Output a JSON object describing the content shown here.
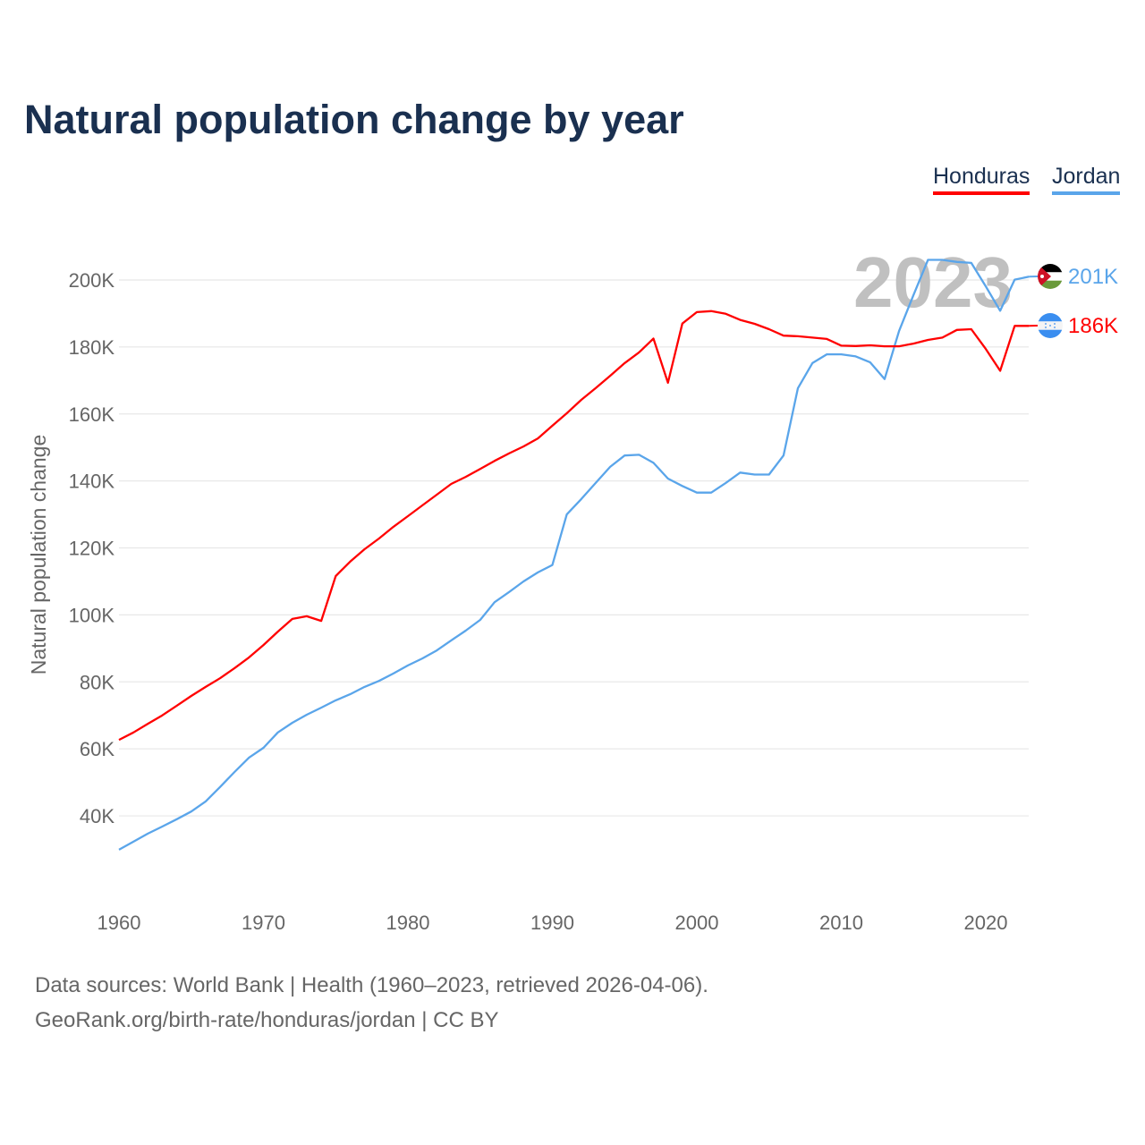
{
  "title": "Natural population change by year",
  "legend": [
    {
      "label": "Honduras",
      "color": "#ff0000"
    },
    {
      "label": "Jordan",
      "color": "#5aa5ea"
    }
  ],
  "year_watermark": "2023",
  "footer": {
    "line1": "Data sources: World Bank | Health (1960–2023, retrieved 2026-04-06).",
    "line2": "GeoRank.org/birth-rate/honduras/jordan | CC BY"
  },
  "chart_data": {
    "type": "line",
    "title": "Natural population change by year",
    "xlabel": "",
    "ylabel": "Natural population change",
    "xlim": [
      1960,
      2023
    ],
    "ylim": [
      20000,
      210000
    ],
    "grid": true,
    "legend_position": "top-right",
    "x_ticks": [
      1960,
      1970,
      1980,
      1990,
      2000,
      2010,
      2020
    ],
    "x_tick_labels": [
      "1960",
      "1970",
      "1980",
      "1990",
      "2000",
      "2010",
      "2020"
    ],
    "y_ticks": [
      40000,
      60000,
      80000,
      100000,
      120000,
      140000,
      160000,
      180000,
      200000
    ],
    "y_tick_labels": [
      "40K",
      "60K",
      "80K",
      "100K",
      "120K",
      "140K",
      "160K",
      "180K",
      "200K"
    ],
    "x_start": 1960,
    "series": [
      {
        "name": "Honduras",
        "color": "#ff0000",
        "flag": "honduras-flag",
        "end_label": "186K",
        "values": [
          62700,
          64900,
          67500,
          70000,
          72900,
          75800,
          78500,
          81100,
          84100,
          87300,
          91000,
          95000,
          98800,
          99600,
          98200,
          111600,
          115900,
          119600,
          122800,
          126300,
          129500,
          132700,
          135900,
          139100,
          141200,
          143600,
          146000,
          148200,
          150300,
          152700,
          156500,
          160200,
          164200,
          167700,
          171400,
          175200,
          178400,
          182500,
          169300,
          187000,
          190400,
          190700,
          189900,
          188100,
          186900,
          185300,
          183400,
          183200,
          182800,
          182400,
          180400,
          180300,
          180500,
          180200,
          180200,
          181000,
          182100,
          182800,
          185100,
          185300,
          179400,
          172900,
          186300,
          186300
        ]
      },
      {
        "name": "Jordan",
        "color": "#5aa5ea",
        "flag": "jordan-flag",
        "end_label": "201K",
        "values": [
          29900,
          32300,
          34700,
          36800,
          39000,
          41300,
          44300,
          48600,
          53100,
          57400,
          60300,
          64900,
          67800,
          70200,
          72300,
          74500,
          76300,
          78500,
          80300,
          82500,
          84900,
          87000,
          89400,
          92400,
          95300,
          98500,
          103800,
          106800,
          110000,
          112700,
          114900,
          130000,
          134600,
          139400,
          144200,
          147600,
          147800,
          145400,
          140700,
          138500,
          136500,
          136500,
          139400,
          142500,
          141900,
          141900,
          147600,
          167700,
          175200,
          177800,
          177800,
          177200,
          175400,
          170400,
          184800,
          195500,
          206000,
          206000,
          205400,
          205100,
          198100,
          190800,
          200100,
          201000
        ]
      }
    ]
  }
}
